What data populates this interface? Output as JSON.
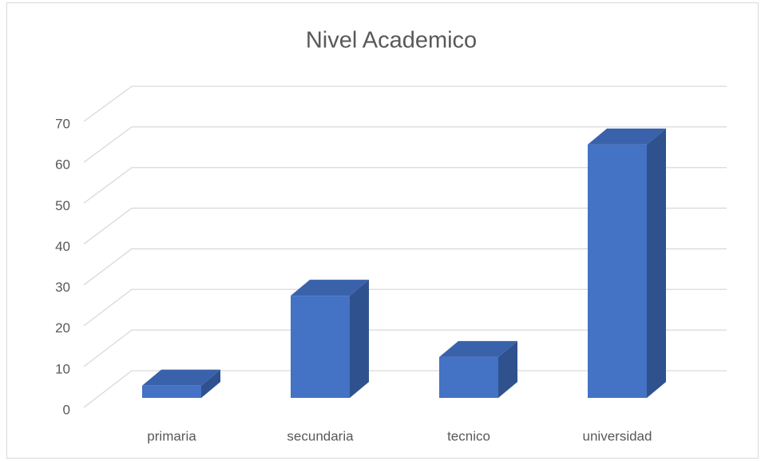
{
  "chart_data": {
    "type": "bar3d",
    "title": "Nivel Academico",
    "categories": [
      "primaria",
      "secundaria",
      "tecnico",
      "universidad"
    ],
    "values": [
      3,
      25,
      10,
      62
    ],
    "color": "#4472c4",
    "side_color": "#2f528f",
    "top_color": "#3a62ab",
    "ylim": [
      0,
      70
    ],
    "yticks": [
      0,
      10,
      20,
      30,
      40,
      50,
      60,
      70
    ],
    "grid": true
  }
}
